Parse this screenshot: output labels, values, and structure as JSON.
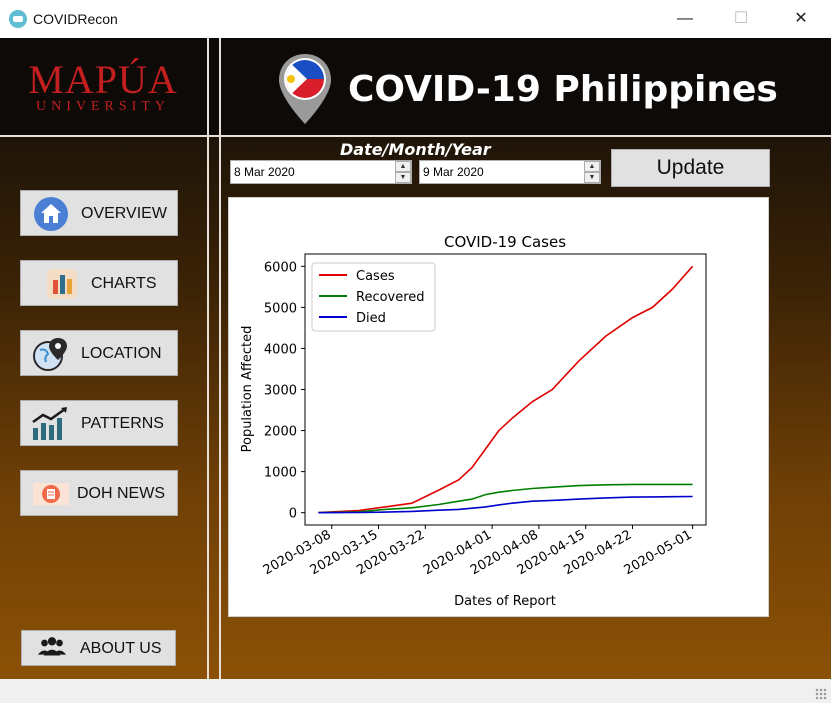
{
  "window": {
    "title": "COVIDRecon",
    "minimize": "—",
    "maximize": "☐",
    "close": "✕"
  },
  "logo": {
    "line1": "MAPÚA",
    "line2": "UNIVERSITY"
  },
  "header": {
    "title": "COVID-19 Philippines"
  },
  "nav": {
    "overview": "OVERVIEW",
    "charts": "CHARTS",
    "location": "LOCATION",
    "patterns": "PATTERNS",
    "doh_news": "DOH NEWS",
    "about_us": "ABOUT US"
  },
  "date_label": "Date/Month/Year",
  "start_date": "8 Mar 2020",
  "end_date": "9 Mar 2020",
  "update_label": "Update",
  "colors": {
    "cases": "#e00000",
    "recovered": "#008000",
    "died": "#0000cc"
  },
  "chart_data": {
    "type": "line",
    "title": "COVID-19 Cases",
    "xlabel": "Dates of Report",
    "ylabel": "Population Affected",
    "x_ticks": [
      "2020-03-08",
      "2020-03-15",
      "2020-03-22",
      "2020-04-01",
      "2020-04-08",
      "2020-04-15",
      "2020-04-22",
      "2020-05-01"
    ],
    "y_ticks": [
      0,
      1000,
      2000,
      3000,
      4000,
      5000,
      6000
    ],
    "ylim": [
      -300,
      6300
    ],
    "legend_position": "top-left",
    "x": [
      "2020-03-06",
      "2020-03-12",
      "2020-03-16",
      "2020-03-20",
      "2020-03-24",
      "2020-03-27",
      "2020-03-29",
      "2020-03-31",
      "2020-04-02",
      "2020-04-04",
      "2020-04-07",
      "2020-04-10",
      "2020-04-14",
      "2020-04-18",
      "2020-04-22",
      "2020-04-25",
      "2020-04-28",
      "2020-05-01"
    ],
    "series": [
      {
        "name": "Cases",
        "color": "#e00000",
        "values": [
          3,
          50,
          140,
          230,
          550,
          800,
          1100,
          1550,
          2000,
          2300,
          2700,
          3000,
          3700,
          4300,
          4750,
          5000,
          5450,
          6000
        ]
      },
      {
        "name": "Recovered",
        "color": "#008000",
        "values": [
          0,
          20,
          80,
          120,
          200,
          280,
          330,
          440,
          500,
          540,
          590,
          620,
          660,
          680,
          690,
          690,
          690,
          690
        ]
      },
      {
        "name": "Died",
        "color": "#0000cc",
        "values": [
          0,
          5,
          15,
          30,
          60,
          80,
          110,
          140,
          190,
          230,
          280,
          300,
          330,
          360,
          380,
          385,
          390,
          395
        ]
      }
    ]
  }
}
